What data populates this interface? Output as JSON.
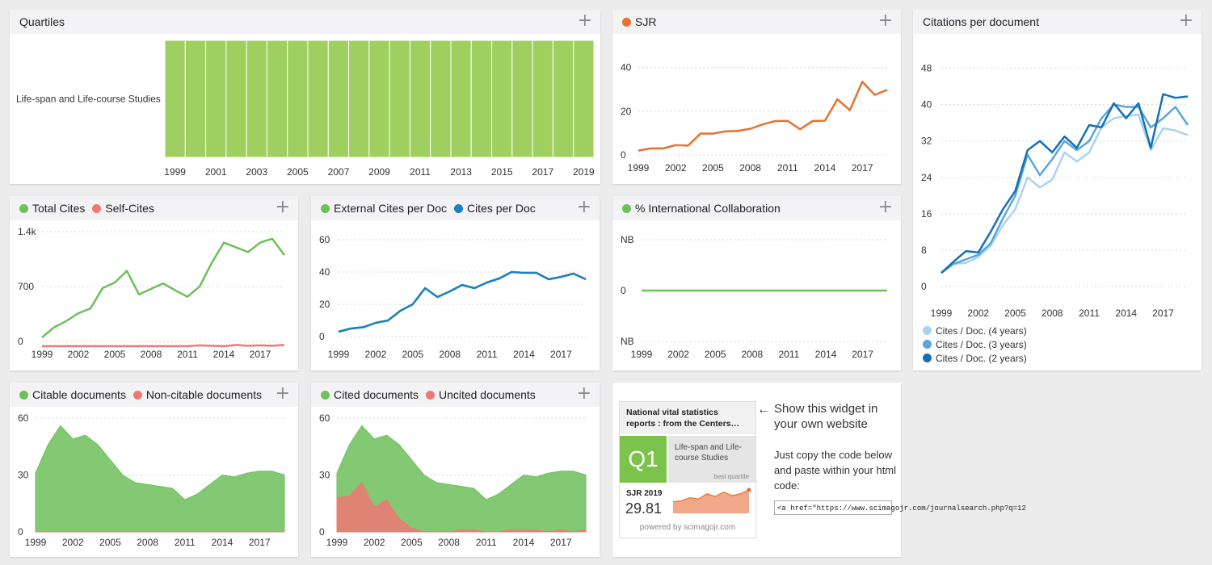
{
  "colors": {
    "green": "#6dc05a",
    "red": "#f07874",
    "orange": "#e8712f",
    "blue": "#1a80c0",
    "light_blue": "#a9d3ef",
    "mid_blue": "#5ba6d8",
    "dark_blue": "#1470b8",
    "quartile_green": "#9fd05f"
  },
  "ui": {
    "expand_icon": "plus-icon",
    "expand_glyph": "+"
  },
  "cards": {
    "quartiles": {
      "title": "Quartiles"
    },
    "sjr": {
      "legend": [
        "SJR"
      ]
    },
    "cites_per_doc": {
      "title": "Citations per document",
      "legend": [
        "Cites / Doc. (4 years)",
        "Cites / Doc. (3 years)",
        "Cites / Doc. (2 years)"
      ]
    },
    "total_cites": {
      "legend": [
        "Total Cites",
        "Self-Cites"
      ]
    },
    "ext_cites": {
      "legend": [
        "External Cites per Doc",
        "Cites per Doc"
      ]
    },
    "intl": {
      "legend": [
        "% International Collaboration"
      ]
    },
    "citable": {
      "legend": [
        "Citable documents",
        "Non-citable documents"
      ]
    },
    "cited": {
      "legend": [
        "Cited documents",
        "Uncited documents"
      ]
    }
  },
  "widget": {
    "journal_title": "National vital statistics reports : from the Centers…",
    "quartile": "Q1",
    "category": "Life-span and Life-course Studies",
    "best_quartile_label": "best quartile",
    "sjr_label": "SJR 2019",
    "sjr_value": "29.81",
    "powered_by": "powered by scimagojr.com",
    "sparkline": [
      4.5,
      4.8,
      6.0,
      5.5,
      7.5,
      6.5,
      8.2,
      6.8,
      7.5,
      9.0
    ],
    "arrow": "←",
    "promo_title": "Show this widget in your own website",
    "promo_text": "Just copy the code below and paste within your html code:",
    "code": "<a href=\"https://www.scimagojr.com/journalsearch.php?q=12"
  },
  "chart_data": [
    {
      "id": "quartiles",
      "type": "heatmap",
      "title": "Quartiles",
      "categories": [
        "Life-span and Life-course Studies"
      ],
      "x": [
        1999,
        2000,
        2001,
        2002,
        2003,
        2004,
        2005,
        2006,
        2007,
        2008,
        2009,
        2010,
        2011,
        2012,
        2013,
        2014,
        2015,
        2016,
        2017,
        2018,
        2019
      ],
      "values": [
        "Q1",
        "Q1",
        "Q1",
        "Q1",
        "Q1",
        "Q1",
        "Q1",
        "Q1",
        "Q1",
        "Q1",
        "Q1",
        "Q1",
        "Q1",
        "Q1",
        "Q1",
        "Q1",
        "Q1",
        "Q1",
        "Q1",
        "Q1",
        "Q1"
      ],
      "xticks": [
        "1999",
        "2001",
        "2003",
        "2005",
        "2007",
        "2009",
        "2011",
        "2013",
        "2015",
        "2017",
        "2019"
      ]
    },
    {
      "id": "sjr",
      "type": "line",
      "ylim": [
        0,
        48
      ],
      "yticks": [
        0,
        20,
        40
      ],
      "xticks": [
        "1999",
        "2002",
        "2005",
        "2008",
        "2011",
        "2014",
        "2017"
      ],
      "x": [
        1999,
        2000,
        2001,
        2002,
        2003,
        2004,
        2005,
        2006,
        2007,
        2008,
        2009,
        2010,
        2011,
        2012,
        2013,
        2014,
        2015,
        2016,
        2017,
        2018,
        2019
      ],
      "series": [
        {
          "name": "SJR",
          "color": "#e8712f",
          "values": [
            2.0,
            3.0,
            3.0,
            4.5,
            4.3,
            9.8,
            9.8,
            10.8,
            11.0,
            12.0,
            14.0,
            15.5,
            15.6,
            11.8,
            15.5,
            15.7,
            25.5,
            20.5,
            33.5,
            27.5,
            29.8
          ]
        }
      ]
    },
    {
      "id": "cites_per_doc",
      "type": "line",
      "ylim": [
        -3,
        52
      ],
      "yticks": [
        0,
        8,
        16,
        24,
        32,
        40,
        48
      ],
      "xticks": [
        "1999",
        "2002",
        "2005",
        "2008",
        "2011",
        "2014",
        "2017"
      ],
      "x": [
        1999,
        2000,
        2001,
        2002,
        2003,
        2004,
        2005,
        2006,
        2007,
        2008,
        2009,
        2010,
        2011,
        2012,
        2013,
        2014,
        2015,
        2016,
        2017,
        2018,
        2019
      ],
      "series": [
        {
          "name": "Cites / Doc. (4 years)",
          "color": "#a9d3ef",
          "values": [
            3.0,
            5.0,
            5.2,
            6.5,
            9.0,
            13.5,
            17.0,
            24.0,
            21.8,
            23.5,
            29.5,
            27.5,
            29.5,
            35.0,
            37.0,
            37.5,
            37.8,
            30.0,
            34.8,
            34.3,
            33.3
          ]
        },
        {
          "name": "Cites / Doc. (3 years)",
          "color": "#5ba6d8",
          "values": [
            3.0,
            5.0,
            6.0,
            7.0,
            9.5,
            15.0,
            20.0,
            29.0,
            24.5,
            28.0,
            32.0,
            30.0,
            32.0,
            37.0,
            40.0,
            39.5,
            39.5,
            35.0,
            37.0,
            39.5,
            35.5
          ]
        },
        {
          "name": "Cites / Doc. (2 years)",
          "color": "#1470b8",
          "values": [
            3.0,
            5.5,
            7.8,
            7.5,
            12.0,
            17.0,
            21.0,
            30.0,
            32.0,
            29.5,
            33.0,
            30.5,
            35.5,
            35.0,
            40.3,
            37.0,
            40.3,
            30.5,
            42.3,
            41.5,
            41.8
          ]
        }
      ]
    },
    {
      "id": "total_cites",
      "type": "line",
      "ylim": [
        0,
        1400
      ],
      "yticks": [
        0,
        700,
        1400
      ],
      "yticklabels": [
        "0",
        "700",
        "1.4k"
      ],
      "xticks": [
        "1999",
        "2002",
        "2005",
        "2008",
        "2011",
        "2014",
        "2017"
      ],
      "x": [
        1999,
        2000,
        2001,
        2002,
        2003,
        2004,
        2005,
        2006,
        2007,
        2008,
        2009,
        2010,
        2011,
        2012,
        2013,
        2014,
        2015,
        2016,
        2017,
        2018,
        2019
      ],
      "series": [
        {
          "name": "Total Cites",
          "color": "#6dc05a",
          "values": [
            50,
            180,
            260,
            360,
            420,
            680,
            750,
            900,
            600,
            670,
            740,
            650,
            570,
            700,
            1000,
            1260,
            1200,
            1140,
            1260,
            1310,
            1100
          ]
        },
        {
          "name": "Self-Cites",
          "color": "#f07874",
          "values": [
            -60,
            -60,
            -60,
            -60,
            -60,
            -60,
            -60,
            -60,
            -60,
            -60,
            -60,
            -60,
            -60,
            -50,
            -55,
            -60,
            -45,
            -55,
            -50,
            -55,
            -45
          ]
        }
      ]
    },
    {
      "id": "ext_cites",
      "type": "line",
      "ylim": [
        -3,
        60
      ],
      "yticks": [
        0,
        20,
        40,
        60
      ],
      "xticks": [
        "1999",
        "2002",
        "2005",
        "2008",
        "2011",
        "2014",
        "2017"
      ],
      "x": [
        1999,
        2000,
        2001,
        2002,
        2003,
        2004,
        2005,
        2006,
        2007,
        2008,
        2009,
        2010,
        2011,
        2012,
        2013,
        2014,
        2015,
        2016,
        2017,
        2018,
        2019
      ],
      "series": [
        {
          "name": "External Cites per Doc",
          "color": "#6dc05a",
          "values": [
            3.0,
            5.0,
            5.8,
            8.5,
            10.0,
            16.0,
            20.0,
            30.0,
            24.5,
            28.0,
            32.0,
            30.0,
            33.5,
            36.0,
            40.0,
            39.5,
            39.5,
            35.5,
            37.0,
            39.0,
            35.5
          ]
        },
        {
          "name": "Cites per Doc",
          "color": "#1a80c0",
          "values": [
            3.0,
            5.0,
            5.8,
            8.5,
            10.0,
            16.0,
            20.0,
            30.0,
            24.5,
            28.0,
            32.0,
            30.0,
            33.5,
            36.0,
            40.0,
            39.5,
            39.5,
            35.5,
            37.0,
            39.0,
            35.5
          ]
        }
      ]
    },
    {
      "id": "intl",
      "type": "line",
      "ylim": [
        -1,
        1
      ],
      "yticks": [
        -1,
        0,
        1
      ],
      "yticklabels": [
        "NB",
        "0",
        "NB"
      ],
      "xticks": [
        "1999",
        "2002",
        "2005",
        "2008",
        "2011",
        "2014",
        "2017"
      ],
      "x": [
        1999,
        2000,
        2001,
        2002,
        2003,
        2004,
        2005,
        2006,
        2007,
        2008,
        2009,
        2010,
        2011,
        2012,
        2013,
        2014,
        2015,
        2016,
        2017,
        2018,
        2019
      ],
      "series": [
        {
          "name": "% International Collaboration",
          "color": "#6dc05a",
          "values": [
            0,
            0,
            0,
            0,
            0,
            0,
            0,
            0,
            0,
            0,
            0,
            0,
            0,
            0,
            0,
            0,
            0,
            0,
            0,
            0,
            0
          ]
        }
      ]
    },
    {
      "id": "citable",
      "type": "area",
      "ylim": [
        0,
        60
      ],
      "yticks": [
        0,
        30,
        60
      ],
      "xticks": [
        "1999",
        "2002",
        "2005",
        "2008",
        "2011",
        "2014",
        "2017"
      ],
      "x": [
        1999,
        2000,
        2001,
        2002,
        2003,
        2004,
        2005,
        2006,
        2007,
        2008,
        2009,
        2010,
        2011,
        2012,
        2013,
        2014,
        2015,
        2016,
        2017,
        2018,
        2019
      ],
      "series": [
        {
          "name": "Citable documents",
          "color": "#6dc05a",
          "values": [
            31,
            46,
            56,
            49,
            51,
            46,
            38,
            30,
            26,
            25,
            24,
            23,
            17,
            20,
            25,
            30,
            29,
            31,
            32,
            32,
            30
          ]
        },
        {
          "name": "Non-citable documents",
          "color": "#f07874",
          "values": [
            0,
            0,
            0,
            0,
            0,
            0,
            0,
            0,
            0,
            0,
            0,
            0,
            0,
            0,
            0,
            0,
            0,
            0,
            0,
            0,
            0
          ]
        }
      ]
    },
    {
      "id": "cited",
      "type": "area",
      "ylim": [
        0,
        60
      ],
      "yticks": [
        0,
        30,
        60
      ],
      "xticks": [
        "1999",
        "2002",
        "2005",
        "2008",
        "2011",
        "2014",
        "2017"
      ],
      "x": [
        1999,
        2000,
        2001,
        2002,
        2003,
        2004,
        2005,
        2006,
        2007,
        2008,
        2009,
        2010,
        2011,
        2012,
        2013,
        2014,
        2015,
        2016,
        2017,
        2018,
        2019
      ],
      "series": [
        {
          "name": "Cited documents",
          "color": "#6dc05a",
          "values": [
            31,
            46,
            56,
            49,
            51,
            46,
            38,
            30,
            26,
            25,
            24,
            23,
            17,
            20,
            25,
            30,
            29,
            31,
            32,
            32,
            30
          ]
        },
        {
          "name": "Uncited documents",
          "color": "#f07874",
          "values": [
            18,
            19,
            26,
            13,
            17,
            7,
            2,
            0,
            0,
            0,
            1,
            1,
            0,
            0,
            1,
            1,
            1,
            0,
            1,
            0,
            1
          ]
        }
      ]
    }
  ]
}
